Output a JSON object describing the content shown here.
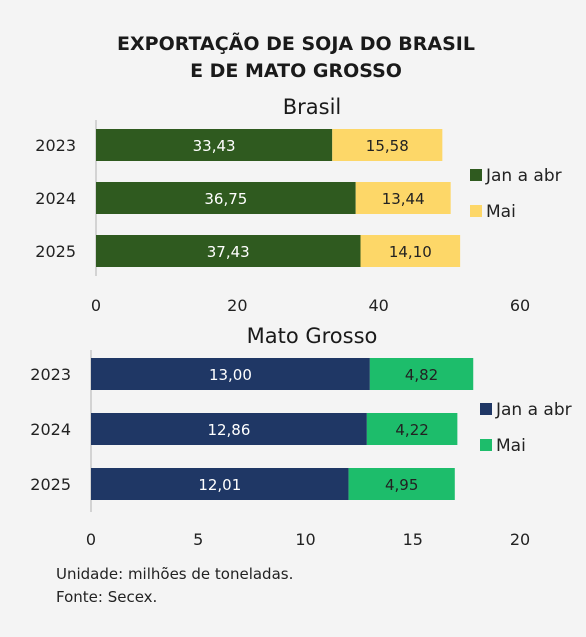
{
  "title_line1": "EXPORTAÇÃO DE SOJA DO BRASIL",
  "title_line2": "E DE MATO GROSSO",
  "footnote_unit": "Unidade: milhões de toneladas.",
  "footnote_source": "Fonte: Secex.",
  "chart_data": [
    {
      "type": "bar",
      "orientation": "horizontal",
      "stacked": true,
      "title": "Brasil",
      "categories": [
        "2023",
        "2024",
        "2025"
      ],
      "series": [
        {
          "name": "Jan a abr",
          "color": "#2f5a1f",
          "label_color": "#ffffff",
          "values": [
            33.43,
            36.75,
            37.43
          ],
          "labels": [
            "33,43",
            "36,75",
            "37,43"
          ]
        },
        {
          "name": "Mai",
          "color": "#fdd768",
          "label_color": "#222222",
          "values": [
            15.58,
            13.44,
            14.1
          ],
          "labels": [
            "15,58",
            "13,44",
            "14,10"
          ]
        }
      ],
      "xlim": [
        0,
        60
      ],
      "xticks": [
        "0",
        "20",
        "40",
        "60"
      ],
      "legend": "right",
      "grid": false
    },
    {
      "type": "bar",
      "orientation": "horizontal",
      "stacked": true,
      "title": "Mato Grosso",
      "categories": [
        "2023",
        "2024",
        "2025"
      ],
      "series": [
        {
          "name": "Jan a abr",
          "color": "#1f3765",
          "label_color": "#ffffff",
          "values": [
            13.0,
            12.86,
            12.01
          ],
          "labels": [
            "13,00",
            "12,86",
            "12,01"
          ]
        },
        {
          "name": "Mai",
          "color": "#1dbd6b",
          "label_color": "#222222",
          "values": [
            4.82,
            4.22,
            4.95
          ],
          "labels": [
            "4,82",
            "4,22",
            "4,95"
          ]
        }
      ],
      "xlim": [
        0,
        20
      ],
      "xticks": [
        "0",
        "5",
        "10",
        "15",
        "20"
      ],
      "legend": "right",
      "grid": false
    }
  ]
}
